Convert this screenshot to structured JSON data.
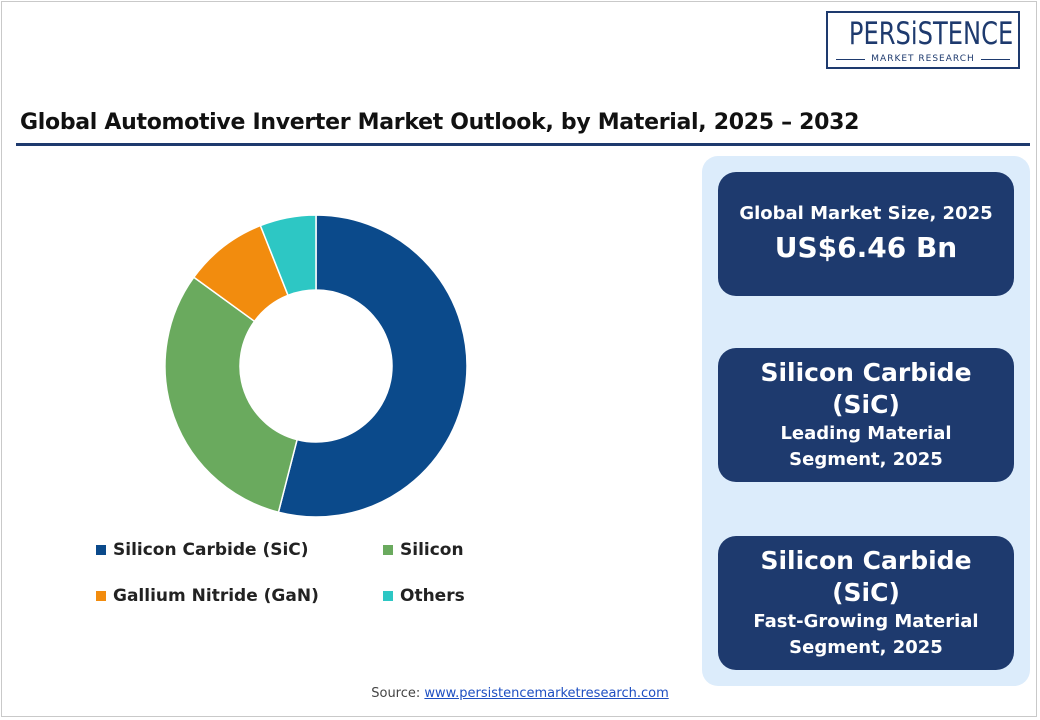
{
  "logo": {
    "main": "PERSiSTENCE",
    "sub": "MARKET RESEARCH"
  },
  "title": "Global Automotive Inverter Market Outlook, by Material, 2025 – 2032",
  "chart_data": {
    "type": "pie",
    "title": "Global Automotive Inverter Market Outlook, by Material, 2025 – 2032",
    "donut": true,
    "categories": [
      "Silicon Carbide (SiC)",
      "Silicon",
      "Gallium Nitride (GaN)",
      "Others"
    ],
    "values": [
      54,
      31,
      9,
      6
    ],
    "colors": [
      "#0b4a8b",
      "#6aaa5e",
      "#f28c0e",
      "#2dc7c4"
    ],
    "legend_position": "bottom"
  },
  "legend": [
    {
      "label": "Silicon Carbide (SiC)",
      "color": "#0b4a8b"
    },
    {
      "label": "Silicon",
      "color": "#6aaa5e"
    },
    {
      "label": "Gallium Nitride (GaN)",
      "color": "#f28c0e"
    },
    {
      "label": "Others",
      "color": "#2dc7c4"
    }
  ],
  "cards": {
    "market_size": {
      "label": "Global Market Size, 2025",
      "value": "US$6.46 Bn"
    },
    "leading": {
      "line1": "Silicon Carbide",
      "line2": "(SiC)",
      "line3": "Leading Material",
      "line4": "Segment, 2025"
    },
    "fast_growing": {
      "line1": "Silicon Carbide",
      "line2": "(SiC)",
      "line3": "Fast-Growing Material",
      "line4": "Segment, 2025"
    }
  },
  "source": {
    "label": "Source:",
    "link": "www.persistencemarketresearch.com"
  }
}
